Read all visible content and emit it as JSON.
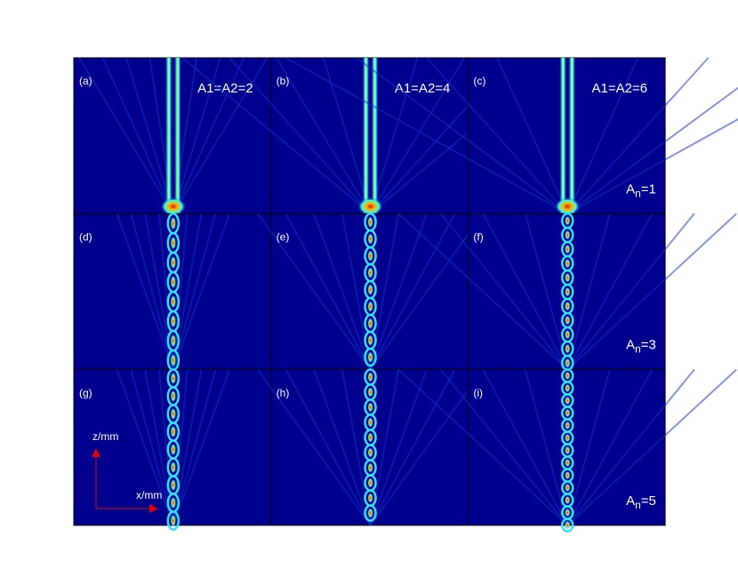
{
  "panels": [
    {
      "label": "(a)"
    },
    {
      "label": "(b)"
    },
    {
      "label": "(c)"
    },
    {
      "label": "(d)"
    },
    {
      "label": "(e)"
    },
    {
      "label": "(f)"
    },
    {
      "label": "(g)"
    },
    {
      "label": "(h)"
    },
    {
      "label": "(i)"
    }
  ],
  "column_titles": [
    "A1=A2=2",
    "A1=A2=4",
    "A1=A2=6"
  ],
  "row_labels": [
    {
      "symbol": "A",
      "subscript": "n",
      "value": "=1"
    },
    {
      "symbol": "A",
      "subscript": "n",
      "value": "=3"
    },
    {
      "symbol": "A",
      "subscript": "n",
      "value": "=5"
    }
  ],
  "axes": {
    "z": "z/mm",
    "x": "x/mm"
  }
}
